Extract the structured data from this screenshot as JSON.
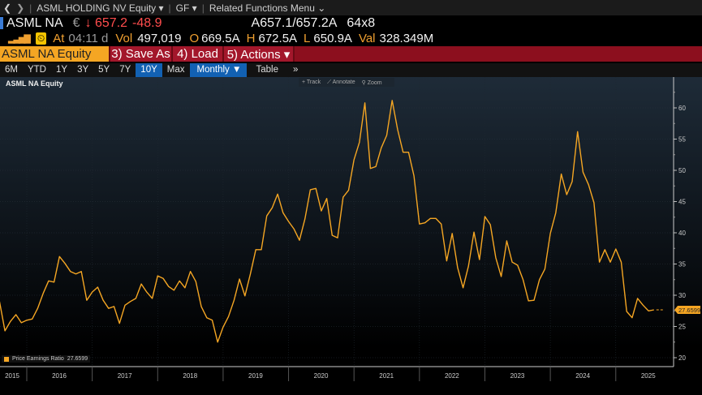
{
  "topbar": {
    "ticker_menu": "ASML HOLDING NV Equity ▾",
    "gf_menu": "GF ▾",
    "related_menu": "Related Functions Menu ⌄"
  },
  "quote": {
    "ticker": "ASML NA",
    "currency": "€",
    "last": "↓ 657.2",
    "change": "-48.9",
    "bid_ask": "A657.1/657.2A",
    "size": "64x8"
  },
  "stats": {
    "at_label": "At",
    "time": "04:11 d",
    "vol_label": "Vol",
    "vol": "497,019",
    "open_label": "O",
    "open": "669.5A",
    "high_label": "H",
    "high": "672.5A",
    "low_label": "L",
    "low": "650.9A",
    "val_label": "Val",
    "val": "328.349M"
  },
  "command": {
    "security": "ASML NA Equity",
    "save_as": "3) Save As",
    "load": "4) Load",
    "actions": "5) Actions ▾"
  },
  "tabs": [
    {
      "label": "6M"
    },
    {
      "label": "YTD"
    },
    {
      "label": "1Y"
    },
    {
      "label": "3Y"
    },
    {
      "label": "5Y"
    },
    {
      "label": "7Y"
    },
    {
      "label": "10Y",
      "selected": true
    },
    {
      "label": "Max"
    }
  ],
  "period": "Monthly ▼",
  "table_label": "Table",
  "more_label": "»",
  "tools": {
    "track": "+ Track",
    "annotate": "⟋ Annotate",
    "zoom": "⚲ Zoom"
  },
  "colors": {
    "line": "#f5a623",
    "accent_blue": "#1261b3",
    "red_bar": "#8c0f1e"
  },
  "chart_data": {
    "type": "line",
    "title": "ASML NA Equity",
    "ylim": [
      20,
      63
    ],
    "yticks": [
      20,
      25,
      30,
      35,
      40,
      45,
      50,
      55,
      60
    ],
    "xticks": [
      "2015",
      "2016",
      "2017",
      "2018",
      "2019",
      "2020",
      "2021",
      "2022",
      "2023",
      "2024",
      "2025"
    ],
    "legend": "Price Earnings Ratio",
    "last_value": "27.6599",
    "legend_placement": "bottom-left",
    "grid": true,
    "series": [
      {
        "name": "Price Earnings Ratio",
        "x": [
          "2015-08",
          "2015-09",
          "2015-10",
          "2015-11",
          "2015-12",
          "2016-01",
          "2016-02",
          "2016-03",
          "2016-04",
          "2016-05",
          "2016-06",
          "2016-07",
          "2016-08",
          "2016-09",
          "2016-10",
          "2016-11",
          "2016-12",
          "2017-01",
          "2017-02",
          "2017-03",
          "2017-04",
          "2017-05",
          "2017-06",
          "2017-07",
          "2017-08",
          "2017-09",
          "2017-10",
          "2017-11",
          "2017-12",
          "2018-01",
          "2018-02",
          "2018-03",
          "2018-04",
          "2018-05",
          "2018-06",
          "2018-07",
          "2018-08",
          "2018-09",
          "2018-10",
          "2018-11",
          "2018-12",
          "2019-01",
          "2019-02",
          "2019-03",
          "2019-04",
          "2019-05",
          "2019-06",
          "2019-07",
          "2019-08",
          "2019-09",
          "2019-10",
          "2019-11",
          "2019-12",
          "2020-01",
          "2020-02",
          "2020-03",
          "2020-04",
          "2020-05",
          "2020-06",
          "2020-07",
          "2020-08",
          "2020-09",
          "2020-10",
          "2020-11",
          "2020-12",
          "2021-01",
          "2021-02",
          "2021-03",
          "2021-04",
          "2021-05",
          "2021-06",
          "2021-07",
          "2021-08",
          "2021-09",
          "2021-10",
          "2021-11",
          "2021-12",
          "2022-01",
          "2022-02",
          "2022-03",
          "2022-04",
          "2022-05",
          "2022-06",
          "2022-07",
          "2022-08",
          "2022-09",
          "2022-10",
          "2022-11",
          "2022-12",
          "2023-01",
          "2023-02",
          "2023-03",
          "2023-04",
          "2023-05",
          "2023-06",
          "2023-07",
          "2023-08",
          "2023-09",
          "2023-10",
          "2023-11",
          "2023-12",
          "2024-01",
          "2024-02",
          "2024-03",
          "2024-04",
          "2024-05",
          "2024-06",
          "2024-07",
          "2024-08",
          "2024-09",
          "2024-10",
          "2024-11",
          "2024-12",
          "2025-01",
          "2025-02",
          "2025-03",
          "2025-04",
          "2025-05",
          "2025-06",
          "2025-07",
          "2025-08"
        ],
        "values": [
          29.0,
          24.3,
          25.8,
          26.9,
          25.6,
          26.0,
          26.2,
          27.9,
          30.3,
          32.3,
          32.1,
          36.2,
          35.1,
          33.8,
          33.4,
          33.8,
          29.2,
          30.5,
          31.3,
          29.2,
          27.9,
          28.2,
          25.5,
          28.4,
          29.0,
          29.5,
          31.8,
          30.5,
          29.5,
          33.1,
          32.7,
          31.4,
          30.8,
          32.3,
          31.2,
          33.8,
          32.2,
          28.2,
          26.4,
          26.0,
          22.5,
          24.9,
          26.6,
          29.2,
          32.6,
          29.9,
          33.4,
          37.3,
          37.3,
          42.7,
          44.0,
          46.2,
          43.2,
          41.8,
          40.6,
          38.8,
          42.2,
          46.9,
          47.1,
          43.5,
          45.5,
          39.6,
          39.2,
          45.7,
          46.8,
          51.7,
          54.5,
          60.8,
          50.3,
          50.6,
          53.6,
          55.6,
          61.2,
          56.5,
          52.9,
          52.9,
          49.1,
          41.4,
          41.6,
          42.3,
          42.3,
          41.4,
          35.5,
          39.9,
          34.4,
          31.2,
          34.7,
          40.1,
          35.7,
          42.6,
          41.3,
          36.0,
          33.0,
          38.7,
          35.3,
          34.8,
          32.5,
          29.1,
          29.2,
          32.5,
          34.2,
          39.9,
          43.2,
          49.4,
          46.1,
          48.2,
          56.2,
          49.7,
          47.7,
          44.8,
          35.3,
          37.3,
          35.3,
          37.4,
          35.3,
          27.4,
          26.4,
          29.5,
          28.4,
          27.5,
          27.66
        ]
      }
    ]
  }
}
